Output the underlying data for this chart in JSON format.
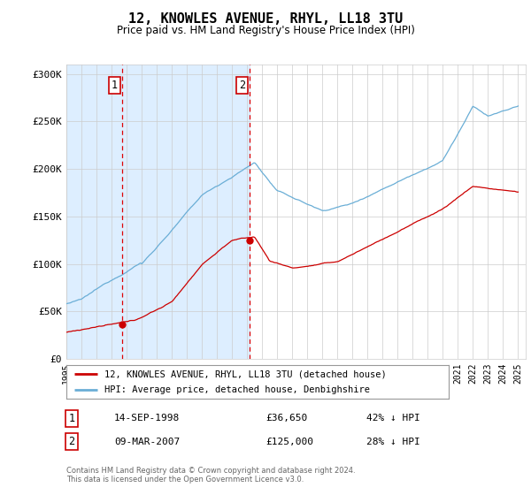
{
  "title": "12, KNOWLES AVENUE, RHYL, LL18 3TU",
  "subtitle": "Price paid vs. HM Land Registry's House Price Index (HPI)",
  "footer": "Contains HM Land Registry data © Crown copyright and database right 2024.\nThis data is licensed under the Open Government Licence v3.0.",
  "legend_label_red": "12, KNOWLES AVENUE, RHYL, LL18 3TU (detached house)",
  "legend_label_blue": "HPI: Average price, detached house, Denbighshire",
  "sale1_date": "14-SEP-1998",
  "sale1_price": "£36,650",
  "sale1_hpi": "42% ↓ HPI",
  "sale1_year": 1998.71,
  "sale1_value": 36650,
  "sale2_date": "09-MAR-2007",
  "sale2_price": "£125,000",
  "sale2_hpi": "28% ↓ HPI",
  "sale2_year": 2007.19,
  "sale2_value": 125000,
  "hpi_color": "#6aaed6",
  "price_color": "#cc0000",
  "vline_color": "#dd0000",
  "shade_color": "#ddeeff",
  "background_color": "#ffffff",
  "grid_color": "#cccccc",
  "ylim": [
    0,
    310000
  ],
  "yticks": [
    0,
    50000,
    100000,
    150000,
    200000,
    250000,
    300000
  ],
  "ytick_labels": [
    "£0",
    "£50K",
    "£100K",
    "£150K",
    "£200K",
    "£250K",
    "£300K"
  ],
  "xlim_start": 1995.0,
  "xlim_end": 2025.5
}
